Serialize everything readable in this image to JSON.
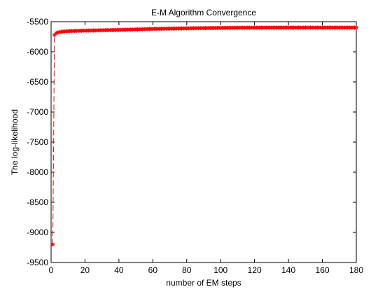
{
  "chart_data": {
    "type": "line",
    "title": "E-M Algorithm Convergence",
    "xlabel": "number of EM steps",
    "ylabel": "The log-likelihood",
    "xlim": [
      0,
      180
    ],
    "ylim": [
      -9500,
      -5500
    ],
    "xticks": [
      0,
      20,
      40,
      60,
      80,
      100,
      120,
      140,
      160,
      180
    ],
    "yticks": [
      -9500,
      -9000,
      -8500,
      -8000,
      -7500,
      -7000,
      -6500,
      -6000,
      -5500
    ],
    "grid": false,
    "series": [
      {
        "color": "#ff0000",
        "line_style": "dashed",
        "marker": "asterisk",
        "anchors": [
          [
            1,
            -9200
          ],
          [
            2,
            -5720
          ],
          [
            3,
            -5690
          ],
          [
            4,
            -5680
          ],
          [
            5,
            -5672
          ],
          [
            6,
            -5668
          ],
          [
            8,
            -5662
          ],
          [
            10,
            -5658
          ],
          [
            15,
            -5652
          ],
          [
            20,
            -5648
          ],
          [
            30,
            -5642
          ],
          [
            40,
            -5636
          ],
          [
            50,
            -5628
          ],
          [
            60,
            -5620
          ],
          [
            70,
            -5615
          ],
          [
            80,
            -5610
          ],
          [
            90,
            -5606
          ],
          [
            100,
            -5603
          ],
          [
            110,
            -5600
          ],
          [
            120,
            -5599
          ],
          [
            140,
            -5598
          ],
          [
            160,
            -5598
          ],
          [
            180,
            -5598
          ]
        ],
        "x_start": 1,
        "x_end": 180
      }
    ]
  }
}
